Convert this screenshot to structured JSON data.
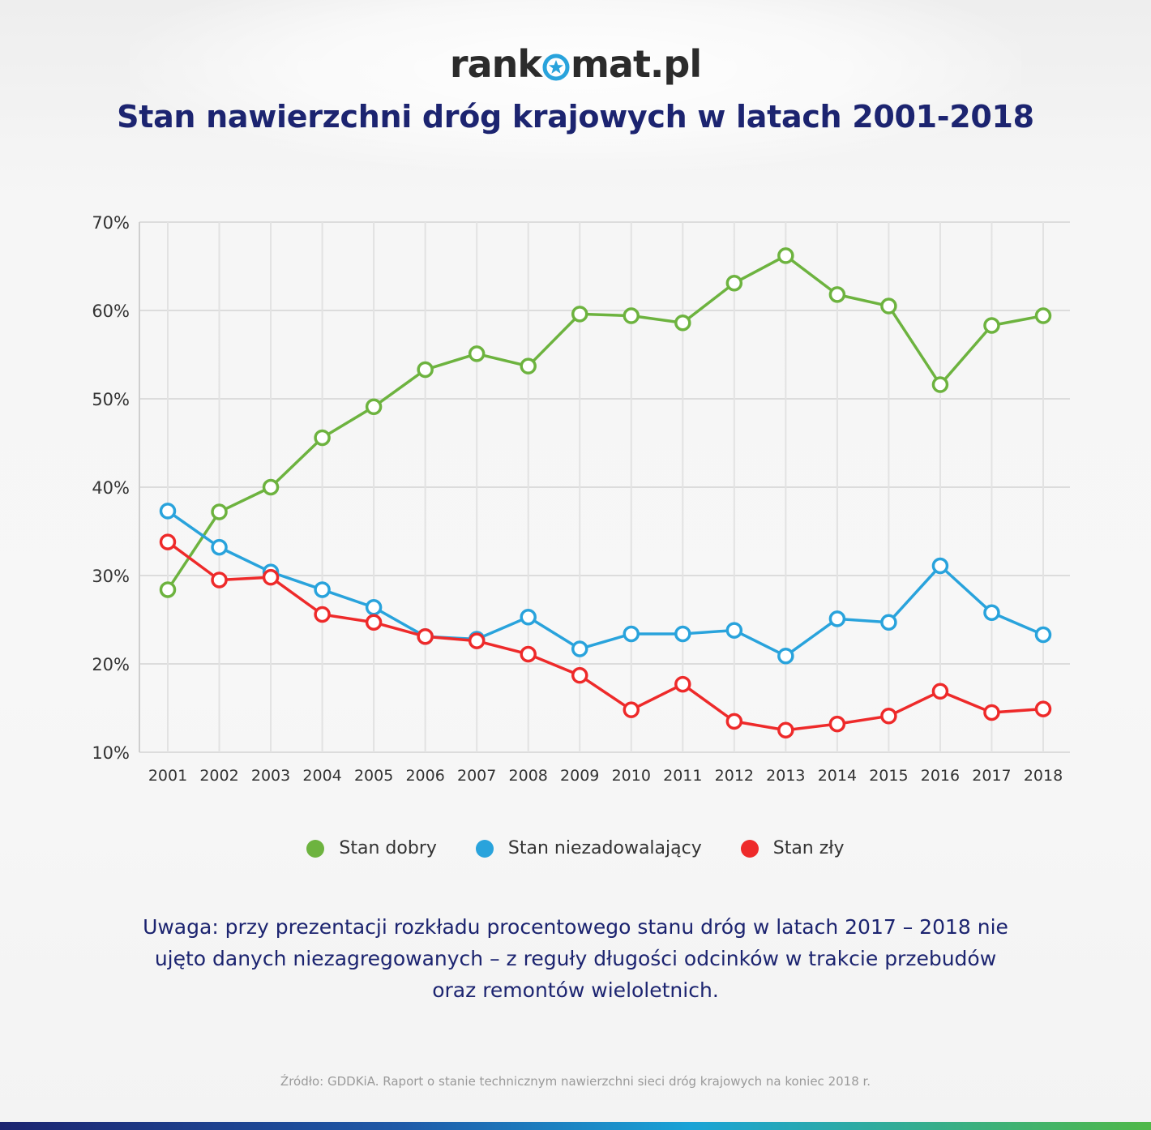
{
  "brand": {
    "logo_left": "rank",
    "logo_right": "mat.pl"
  },
  "title": "Stan nawierzchni dróg krajowych w latach 2001-2018",
  "chart_data": {
    "type": "line",
    "title": "Stan nawierzchni dróg krajowych w latach 2001-2018",
    "xlabel": "",
    "ylabel": "",
    "categories": [
      "2001",
      "2002",
      "2003",
      "2004",
      "2005",
      "2006",
      "2007",
      "2008",
      "2009",
      "2010",
      "2011",
      "2012",
      "2013",
      "2014",
      "2015",
      "2016",
      "2017",
      "2018"
    ],
    "ylim": [
      10,
      70
    ],
    "yticks": [
      10,
      20,
      30,
      40,
      50,
      60,
      70
    ],
    "ytick_labels": [
      "10%",
      "20%",
      "30%",
      "40%",
      "50%",
      "60%",
      "70%"
    ],
    "grid": true,
    "legend_position": "bottom",
    "series": [
      {
        "name": "Stan dobry",
        "color": "#6db33f",
        "values": [
          28.4,
          37.2,
          40.0,
          45.6,
          49.1,
          53.3,
          55.1,
          53.7,
          59.6,
          59.4,
          58.6,
          63.1,
          66.2,
          61.8,
          60.5,
          51.6,
          58.3,
          59.4
        ]
      },
      {
        "name": "Stan niezadowalający",
        "color": "#29a3dc",
        "values": [
          37.3,
          33.2,
          30.4,
          28.4,
          26.4,
          23.1,
          22.8,
          25.3,
          21.7,
          23.4,
          23.4,
          23.8,
          20.9,
          25.1,
          24.7,
          31.1,
          25.8,
          23.3
        ]
      },
      {
        "name": "Stan zły",
        "color": "#ee2a2a",
        "values": [
          33.8,
          29.5,
          29.8,
          25.6,
          24.7,
          23.1,
          22.6,
          21.1,
          18.7,
          14.8,
          17.7,
          13.5,
          12.5,
          13.2,
          14.1,
          16.9,
          14.5,
          14.9
        ]
      }
    ]
  },
  "legend": {
    "items": [
      {
        "label": "Stan dobry",
        "color": "#6db33f"
      },
      {
        "label": "Stan niezadowalający",
        "color": "#29a3dc"
      },
      {
        "label": "Stan zły",
        "color": "#ee2a2a"
      }
    ]
  },
  "note": "Uwaga: przy prezentacji rozkładu procentowego stanu dróg w latach 2017 – 2018 nie ujęto danych niezagregowanych – z reguły długości odcinków w trakcie przebudów oraz remontów wieloletnich.",
  "source": "Źródło: GDDKiA. Raport o stanie technicznym nawierzchni sieci dróg krajowych na koniec 2018 r.",
  "colors": {
    "title": "#1c2470",
    "grid": "#dcdcdc",
    "brand_star": "#29a3dc"
  }
}
